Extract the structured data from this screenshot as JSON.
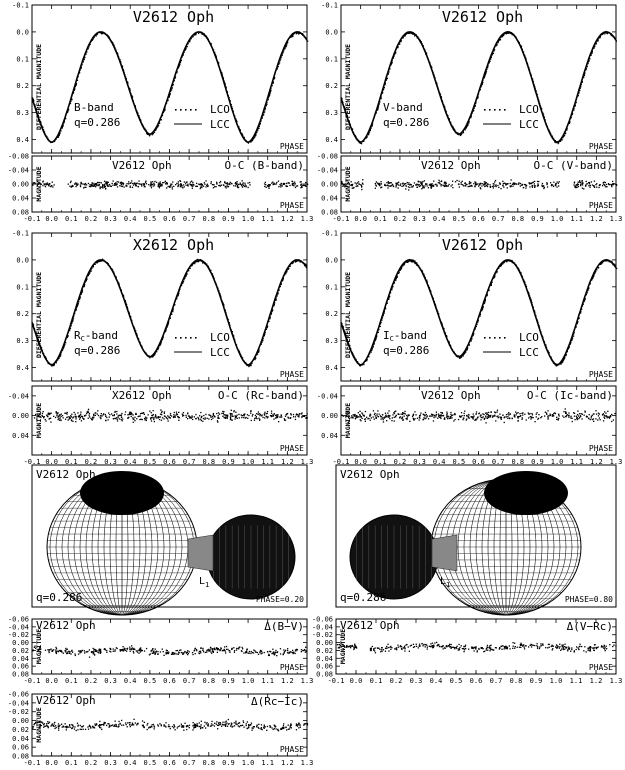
{
  "figure": {
    "star": "V2612 Oph",
    "star_alt": "X2612 Oph",
    "phase_label": "PHASE",
    "ylabel_lc": "DIFFERENTIAL MAGNITUDE",
    "ylabel_small": "MAGNITUDE",
    "legend_obs": "LCO",
    "legend_calc": "LCC",
    "mass_ratio": "q=0.286",
    "l1": "L",
    "l1_sub": "1"
  },
  "light_curves": [
    {
      "band": "B-band",
      "title": "V2612 Oph",
      "oc_label": "O-C (B-band)"
    },
    {
      "band": "V-band",
      "title": "V2612 Oph",
      "oc_label": "O-C (V-band)"
    },
    {
      "band": "Rc-band",
      "title": "X2612 Oph",
      "oc_label": "O-C (Rc-band)"
    },
    {
      "band": "Ic-band",
      "title": "V2612 Oph",
      "oc_label": "O-C (Ic-band)"
    }
  ],
  "models": [
    {
      "title": "V2612 Oph",
      "phase_text": "PHASE=0.20",
      "q": "q=0.286"
    },
    {
      "title": "V2612 Oph",
      "phase_text": "PHASE=0.80",
      "q": "q=0.286"
    }
  ],
  "color_index": [
    {
      "title": "V2612 Oph",
      "label": "Δ(B−V)"
    },
    {
      "title": "V2612 Oph",
      "label": "Δ(V−Rc)"
    },
    {
      "title": "V2612 Oph",
      "label": "Δ(Rc−Ic)"
    }
  ],
  "chart_data": [
    {
      "type": "line",
      "title": "V2612 Oph",
      "band": "B",
      "xlabel": "PHASE",
      "ylabel": "DIFFERENTIAL MAGNITUDE",
      "xlim": [
        -0.1,
        1.3
      ],
      "ylim": [
        -0.1,
        0.45
      ],
      "y_inverted": true,
      "x_ticks": [
        -0.1,
        0.0,
        0.1,
        0.2,
        0.3,
        0.4,
        0.5,
        0.6,
        0.7,
        0.8,
        0.9,
        1.0,
        1.1,
        1.2,
        1.3
      ],
      "y_ticks": [
        -0.1,
        0.0,
        0.1,
        0.2,
        0.3,
        0.4
      ],
      "series": [
        {
          "name": "LCO",
          "style": "dots"
        },
        {
          "name": "LCC",
          "style": "line"
        }
      ],
      "model": {
        "max_mag": 0.0,
        "primary_min_mag": 0.41,
        "secondary_min_mag": 0.38,
        "min_phases": [
          0.0,
          0.5,
          1.0
        ]
      },
      "annotation": "q=0.286"
    },
    {
      "type": "line",
      "title": "V2612 Oph",
      "band": "V",
      "xlim": [
        -0.1,
        1.3
      ],
      "ylim": [
        -0.1,
        0.45
      ],
      "y_inverted": true,
      "series": [
        {
          "name": "LCO",
          "style": "dots"
        },
        {
          "name": "LCC",
          "style": "line"
        }
      ],
      "model": {
        "max_mag": 0.0,
        "primary_min_mag": 0.41,
        "secondary_min_mag": 0.38,
        "min_phases": [
          0.0,
          0.5,
          1.0
        ]
      },
      "annotation": "q=0.286"
    },
    {
      "type": "line",
      "title": "X2612 Oph",
      "band": "Rc",
      "xlim": [
        -0.1,
        1.3
      ],
      "ylim": [
        -0.1,
        0.45
      ],
      "y_inverted": true,
      "series": [
        {
          "name": "LCO",
          "style": "dots"
        },
        {
          "name": "LCC",
          "style": "line"
        }
      ],
      "model": {
        "max_mag": 0.0,
        "primary_min_mag": 0.39,
        "secondary_min_mag": 0.36,
        "min_phases": [
          0.0,
          0.5,
          1.0
        ]
      },
      "annotation": "q=0.286"
    },
    {
      "type": "line",
      "title": "V2612 Oph",
      "band": "Ic",
      "xlim": [
        -0.1,
        1.3
      ],
      "ylim": [
        -0.1,
        0.45
      ],
      "y_inverted": true,
      "series": [
        {
          "name": "LCO",
          "style": "dots"
        },
        {
          "name": "LCC",
          "style": "line"
        }
      ],
      "model": {
        "max_mag": 0.0,
        "primary_min_mag": 0.39,
        "secondary_min_mag": 0.36,
        "min_phases": [
          0.0,
          0.5,
          1.0
        ]
      },
      "annotation": "q=0.286"
    },
    {
      "type": "scatter",
      "title": "O-C (B-band)",
      "xlim": [
        -0.1,
        1.3
      ],
      "ylim": [
        -0.08,
        0.08
      ],
      "y_ticks": [
        -0.08,
        -0.04,
        0.0,
        0.04,
        0.08
      ],
      "level": 0.0,
      "scatter": 0.01,
      "gaps": [
        [
          0.01,
          0.07
        ],
        [
          1.01,
          1.08
        ]
      ]
    },
    {
      "type": "scatter",
      "title": "O-C (V-band)",
      "xlim": [
        -0.1,
        1.3
      ],
      "ylim": [
        -0.08,
        0.08
      ],
      "y_ticks": [
        -0.08,
        -0.04,
        0.0,
        0.04,
        0.08
      ],
      "level": 0.0,
      "scatter": 0.01,
      "gaps": [
        [
          0.01,
          0.07
        ],
        [
          1.01,
          1.08
        ]
      ]
    },
    {
      "type": "scatter",
      "title": "O-C (Rc-band)",
      "xlim": [
        -0.1,
        1.3
      ],
      "ylim": [
        -0.06,
        0.08
      ],
      "y_ticks": [
        -0.04,
        0.0,
        0.04
      ],
      "level": 0.0,
      "scatter": 0.01
    },
    {
      "type": "scatter",
      "title": "O-C (Ic-band)",
      "xlim": [
        -0.1,
        1.3
      ],
      "ylim": [
        -0.06,
        0.08
      ],
      "y_ticks": [
        -0.04,
        0.0,
        0.04
      ],
      "level": 0.0,
      "scatter": 0.01
    },
    {
      "type": "scatter",
      "title": "Δ(B−V)",
      "xlim": [
        -0.1,
        1.3
      ],
      "ylim": [
        -0.06,
        0.08
      ],
      "y_ticks": [
        -0.06,
        -0.04,
        -0.02,
        0.0,
        0.02,
        0.04,
        0.06,
        0.08
      ],
      "level": 0.02,
      "scatter": 0.008
    },
    {
      "type": "scatter",
      "title": "Δ(V−Rc)",
      "xlim": [
        -0.1,
        1.3
      ],
      "ylim": [
        -0.06,
        0.08
      ],
      "y_ticks": [
        -0.06,
        -0.04,
        -0.02,
        0.0,
        0.02,
        0.04,
        0.06,
        0.08
      ],
      "level": 0.01,
      "scatter": 0.008
    },
    {
      "type": "scatter",
      "title": "Δ(Rc−Ic)",
      "xlim": [
        -0.1,
        1.3
      ],
      "ylim": [
        -0.06,
        0.08
      ],
      "y_ticks": [
        -0.06,
        -0.04,
        -0.02,
        0.0,
        0.02,
        0.04,
        0.06,
        0.08
      ],
      "level": 0.01,
      "scatter": 0.008
    }
  ]
}
